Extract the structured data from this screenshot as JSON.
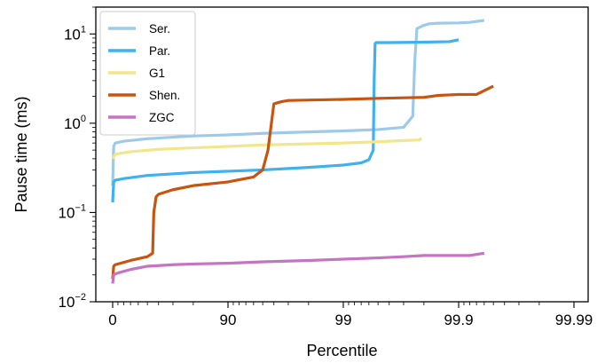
{
  "chart_data": {
    "type": "line",
    "xlabel": "Percentile",
    "ylabel": "Pause time (ms)",
    "x_scale": "percentile (-log10(1 - p/100))",
    "y_scale": "log",
    "xlim": [
      0,
      99.99
    ],
    "ylim": [
      0.01,
      20
    ],
    "x_ticks": [
      {
        "value": 0,
        "label": "0"
      },
      {
        "value": 90,
        "label": "90"
      },
      {
        "value": 99,
        "label": "99"
      },
      {
        "value": 99.9,
        "label": "99.9"
      },
      {
        "value": 99.99,
        "label": "99.99"
      }
    ],
    "y_ticks": [
      {
        "value": 0.01,
        "base": "10",
        "exp": "−2"
      },
      {
        "value": 0.1,
        "base": "10",
        "exp": "−1"
      },
      {
        "value": 1,
        "base": "10",
        "exp": "0"
      },
      {
        "value": 10,
        "base": "10",
        "exp": "1"
      }
    ],
    "grid": false,
    "legend": "top-left",
    "series": [
      {
        "name": "Ser.",
        "color": "#9ecae9",
        "x": [
          0,
          2,
          5,
          20,
          50,
          80,
          90,
          95,
          98,
          99,
          99.5,
          99.7,
          99.75,
          99.76,
          99.77,
          99.8,
          99.82,
          99.85,
          99.9,
          99.92,
          99.94
        ],
        "y": [
          0.2,
          0.55,
          0.6,
          0.63,
          0.67,
          0.72,
          0.74,
          0.77,
          0.8,
          0.82,
          0.85,
          0.9,
          1.2,
          5,
          11.5,
          12.5,
          13,
          13.2,
          13.3,
          13.5,
          14.2
        ]
      },
      {
        "name": "Par.",
        "color": "#3fb1ee",
        "x": [
          0,
          2,
          5,
          20,
          50,
          80,
          90,
          95,
          98,
          99,
          99.3,
          99.4,
          99.45,
          99.46,
          99.47,
          99.48,
          99.5,
          99.6,
          99.8,
          99.88,
          99.9
        ],
        "y": [
          0.13,
          0.22,
          0.23,
          0.24,
          0.26,
          0.28,
          0.29,
          0.3,
          0.32,
          0.34,
          0.36,
          0.39,
          0.5,
          3,
          7.8,
          8,
          8,
          8,
          8.1,
          8.2,
          8.6
        ]
      },
      {
        "name": "G1",
        "color": "#f2e68c",
        "x": [
          0,
          5,
          30,
          60,
          80,
          90,
          95,
          99,
          99.5,
          99.7,
          99.78,
          99.79
        ],
        "y": [
          0.4,
          0.45,
          0.48,
          0.51,
          0.53,
          0.55,
          0.57,
          0.6,
          0.62,
          0.64,
          0.65,
          0.68
        ]
      },
      {
        "name": "Shen.",
        "color": "#c95410",
        "x": [
          0,
          2,
          5,
          30,
          50,
          55,
          56,
          58,
          60,
          70,
          80,
          90,
          94,
          95,
          95.5,
          96,
          96.3,
          96.6,
          97,
          99,
          99.5,
          99.8,
          99.85,
          99.9,
          99.93,
          99.95
        ],
        "y": [
          0.018,
          0.025,
          0.026,
          0.029,
          0.032,
          0.035,
          0.1,
          0.15,
          0.16,
          0.18,
          0.2,
          0.22,
          0.25,
          0.3,
          0.5,
          1.65,
          1.7,
          1.75,
          1.8,
          1.85,
          1.9,
          1.95,
          2.05,
          2.1,
          2.1,
          2.6
        ]
      },
      {
        "name": "ZGC",
        "color": "#c574c2",
        "x": [
          0,
          2,
          10,
          30,
          50,
          70,
          80,
          90,
          95,
          98,
          99,
          99.5,
          99.7,
          99.8,
          99.88,
          99.92,
          99.94
        ],
        "y": [
          0.016,
          0.02,
          0.021,
          0.023,
          0.025,
          0.026,
          0.0265,
          0.027,
          0.028,
          0.029,
          0.03,
          0.031,
          0.032,
          0.033,
          0.033,
          0.033,
          0.035
        ]
      }
    ]
  }
}
